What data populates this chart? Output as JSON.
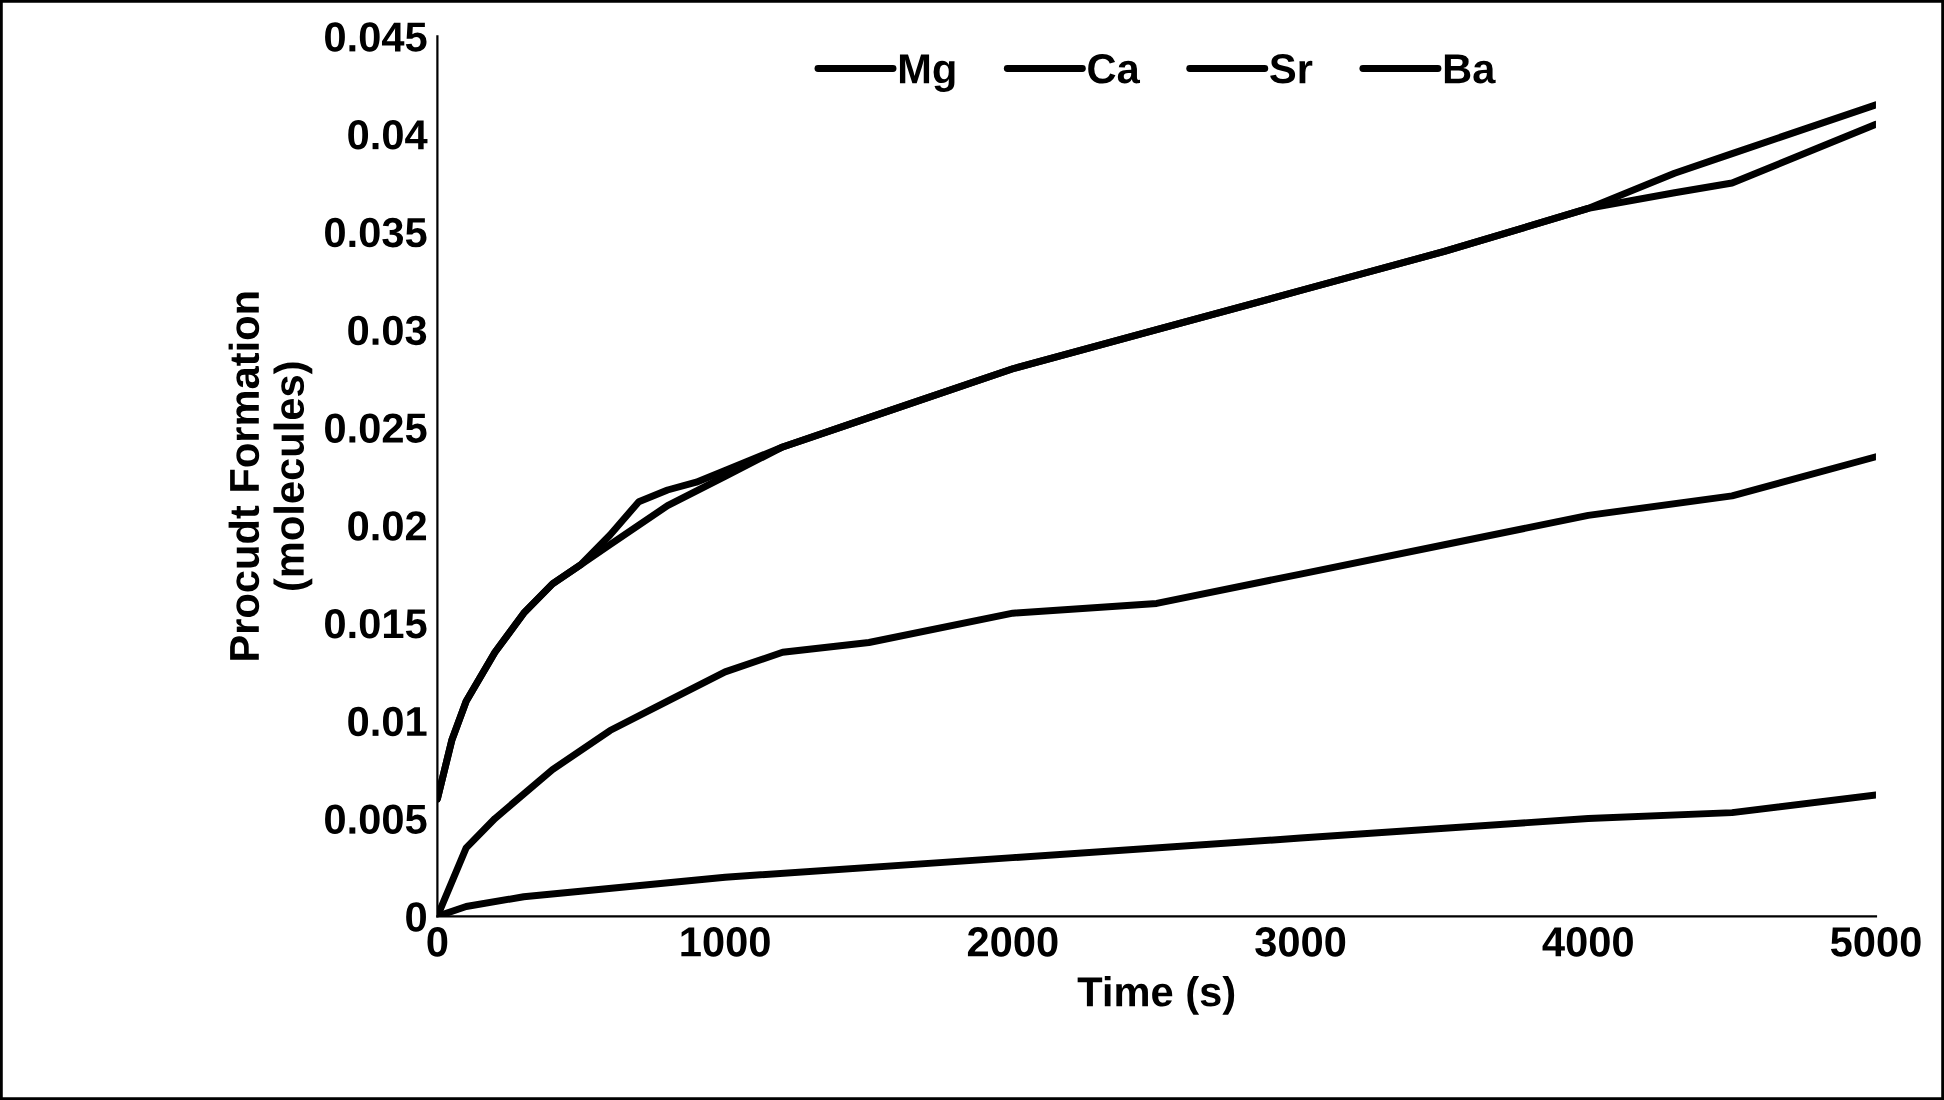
{
  "chart_data": {
    "type": "line",
    "xlabel": "Time (s)",
    "ylabel": "Procudt Formation\n(molecules)",
    "xlim": [
      0,
      5000
    ],
    "xticks": [
      0,
      1000,
      2000,
      3000,
      4000,
      5000
    ],
    "ylim": [
      0,
      0.045
    ],
    "yticks": [
      0,
      0.005,
      0.01,
      0.015,
      0.02,
      0.025,
      0.03,
      0.035,
      0.04,
      0.045
    ],
    "grid": false,
    "legend": "top",
    "marker": "none",
    "line_style": "solid",
    "series": [
      {
        "name": "Mg",
        "color": "#000000",
        "x": [
          0,
          100,
          300,
          1000,
          2000,
          3000,
          4000,
          4500,
          5000
        ],
        "values": [
          0,
          0.0005,
          0.001,
          0.002,
          0.003,
          0.004,
          0.005,
          0.0053,
          0.0062
        ]
      },
      {
        "name": "Ca",
        "color": "#000000",
        "x": [
          0,
          100,
          200,
          400,
          600,
          800,
          1000,
          1200,
          1500,
          2000,
          2500,
          3000,
          3500,
          4000,
          4500,
          5000
        ],
        "values": [
          0,
          0.0035,
          0.005,
          0.0075,
          0.0095,
          0.011,
          0.0125,
          0.0135,
          0.014,
          0.0155,
          0.016,
          0.0175,
          0.019,
          0.0205,
          0.0215,
          0.0235
        ]
      },
      {
        "name": "Sr",
        "color": "#000000",
        "x": [
          0,
          50,
          100,
          200,
          300,
          400,
          500,
          600,
          700,
          800,
          1000,
          1200,
          1500,
          2000,
          2500,
          3000,
          3500,
          4000,
          4300,
          4500,
          5000
        ],
        "values": [
          0.006,
          0.009,
          0.011,
          0.0135,
          0.0155,
          0.017,
          0.018,
          0.019,
          0.02,
          0.021,
          0.0225,
          0.024,
          0.0255,
          0.028,
          0.03,
          0.032,
          0.034,
          0.0362,
          0.037,
          0.0375,
          0.0405
        ]
      },
      {
        "name": "Ba",
        "color": "#000000",
        "x": [
          0,
          50,
          100,
          200,
          300,
          400,
          500,
          600,
          700,
          800,
          900,
          1000,
          1200,
          1500,
          2000,
          2500,
          3000,
          3500,
          4000,
          4300,
          4500,
          5000
        ],
        "values": [
          0.006,
          0.009,
          0.011,
          0.0135,
          0.0155,
          0.017,
          0.018,
          0.0195,
          0.0212,
          0.0218,
          0.0222,
          0.0228,
          0.024,
          0.0255,
          0.028,
          0.03,
          0.032,
          0.034,
          0.0362,
          0.038,
          0.039,
          0.0415
        ]
      }
    ]
  }
}
